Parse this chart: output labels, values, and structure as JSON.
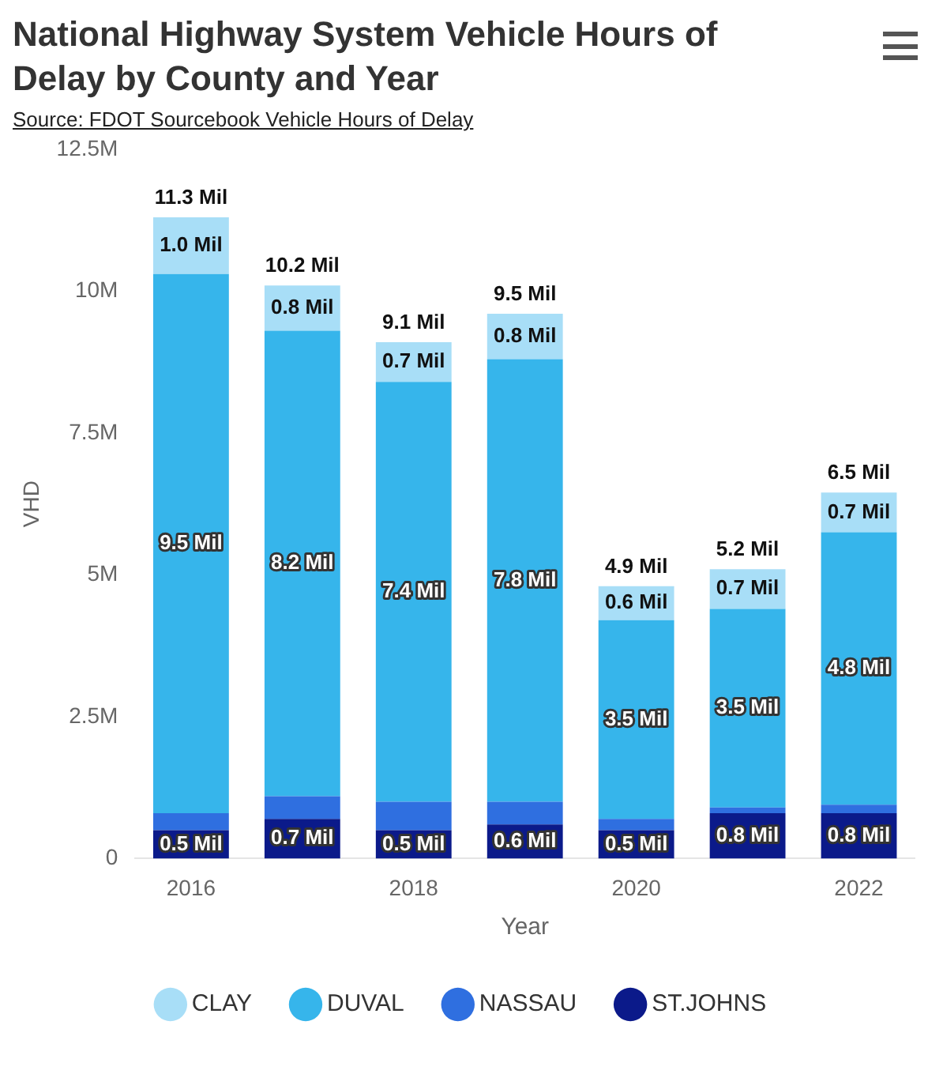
{
  "chart_data": {
    "type": "bar",
    "title": "National Highway System Vehicle Hours of Delay by County and Year",
    "annotations": [
      "Source: FDOT Sourcebook Vehicle Hours of Delay"
    ],
    "xlabel": "Year",
    "ylabel": "VHD",
    "categories": [
      "2016",
      null,
      "2018",
      null,
      "2020",
      null,
      "2022"
    ],
    "stacked": true,
    "legend": "bottom",
    "ylim": [
      0,
      12.5
    ],
    "yticks": [
      0,
      {
        "value": 2.5,
        "label": "2.5M"
      },
      {
        "value": 5,
        "label": "5M"
      },
      {
        "value": 7.5,
        "label": "7.5M"
      },
      {
        "value": 10,
        "label": "10M"
      },
      {
        "value": 12.5,
        "label": "12.5M"
      }
    ],
    "series": [
      {
        "name": "ST.JOHNS",
        "color": "#0b1a8a",
        "values": [
          0.5,
          0.7,
          0.5,
          0.6,
          0.5,
          0.8,
          0.8
        ],
        "value_labels": [
          "0.5 Mil",
          "0.7 Mil",
          "0.5 Mil",
          "0.6 Mil",
          "0.5 Mil",
          "0.8 Mil",
          "0.8 Mil"
        ]
      },
      {
        "name": "NASSAU",
        "color": "#2f6fe0",
        "values": [
          0.3,
          0.4,
          0.5,
          0.4,
          0.2,
          0.1,
          0.15
        ]
      },
      {
        "name": "DUVAL",
        "color": "#36b5eb",
        "values": [
          9.5,
          8.2,
          7.4,
          7.8,
          3.5,
          3.5,
          4.8
        ],
        "value_labels": [
          "9.5 Mil",
          "8.2 Mil",
          "7.4 Mil",
          "7.8 Mil",
          "3.5 Mil",
          "3.5 Mil",
          "4.8 Mil"
        ]
      },
      {
        "name": "CLAY",
        "color": "#a8def7",
        "values": [
          1.0,
          0.8,
          0.7,
          0.8,
          0.6,
          0.7,
          0.7
        ],
        "value_labels": [
          "1.0 Mil",
          "0.8 Mil",
          "0.7 Mil",
          "0.8 Mil",
          "0.6 Mil",
          "0.7 Mil",
          "0.7 Mil"
        ]
      }
    ],
    "totals": [
      "11.3 Mil",
      "10.2 Mil",
      "9.1 Mil",
      "9.5 Mil",
      "4.9 Mil",
      "5.2 Mil",
      "6.5 Mil"
    ]
  }
}
